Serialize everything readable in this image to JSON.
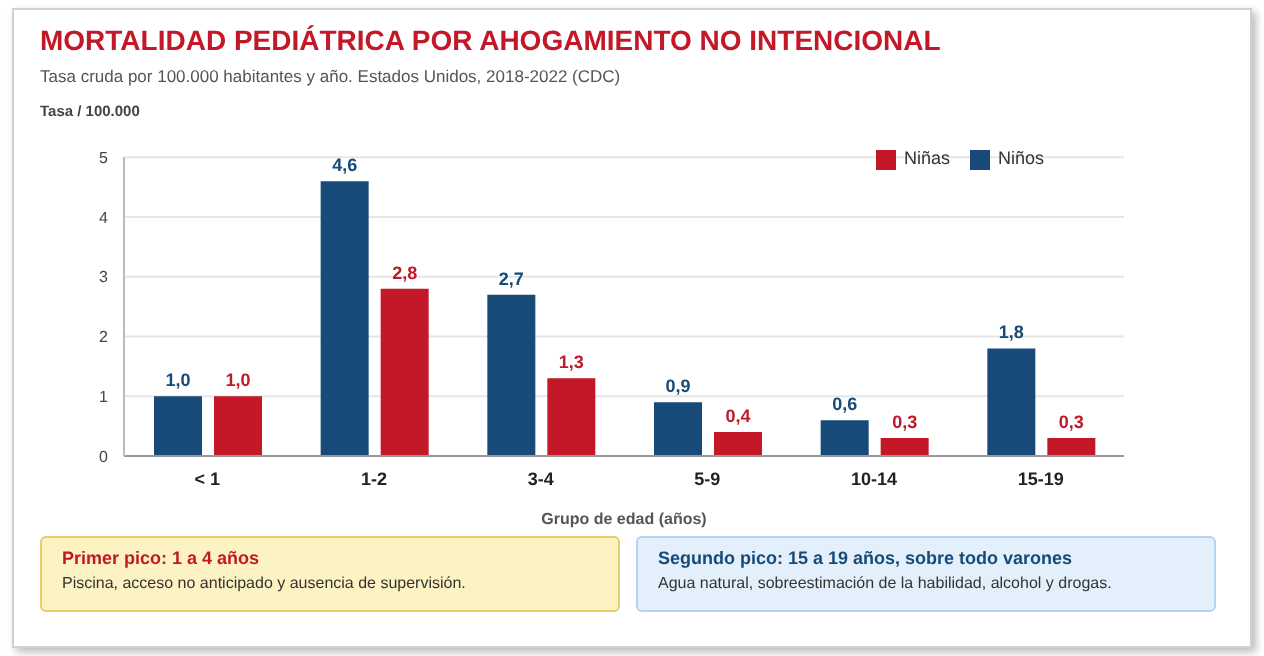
{
  "chart_data": {
    "type": "bar",
    "title": "MORTALIDAD PEDIÁTRICA POR AHOGAMIENTO NO INTENCIONAL",
    "subtitle": "Tasa cruda por 100.000 habitantes y año. Estados Unidos, 2018-2022 (CDC)",
    "ylabel": "Tasa / 100.000",
    "xlabel": "Grupo de edad (años)",
    "categories": [
      "< 1",
      "1-2",
      "3-4",
      "5-9",
      "10-14",
      "15-19"
    ],
    "series": [
      {
        "name": "Niños",
        "color": "#174a78",
        "values": [
          1.0,
          4.6,
          2.7,
          0.9,
          0.6,
          1.8
        ],
        "value_labels": [
          "1,0",
          "4,6",
          "2,7",
          "0,9",
          "0,6",
          "1,8"
        ]
      },
      {
        "name": "Niñas",
        "color": "#c21828",
        "values": [
          1.0,
          2.8,
          1.3,
          0.4,
          0.3,
          0.3
        ],
        "value_labels": [
          "1,0",
          "2,8",
          "1,3",
          "0,4",
          "0,3",
          "0,3"
        ]
      }
    ],
    "ylim": [
      0,
      5
    ],
    "yticks": [
      0,
      1,
      2,
      3,
      4,
      5
    ],
    "grid": "y",
    "legend": "top right",
    "annotations": [
      "Primer pico: 1 a 4 años",
      "Piscina, acceso no anticipado y ausencia de supervisión.",
      "Segundo pico: 15 a 19 años, sobre todo varones",
      "Agua natural, sobreestimación de la habilidad, alcohol y drogas."
    ]
  }
}
